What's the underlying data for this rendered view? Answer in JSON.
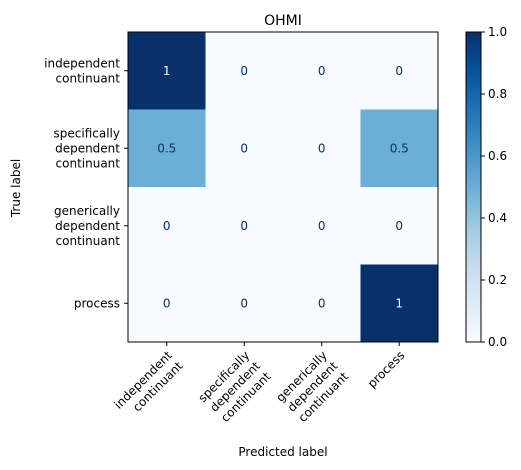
{
  "chart_data": {
    "type": "heatmap",
    "title": "OHMI",
    "xlabel": "Predicted label",
    "ylabel": "True label",
    "row_labels": [
      [
        "independent",
        "continuant"
      ],
      [
        "specifically",
        "dependent",
        "continuant"
      ],
      [
        "generically",
        "dependent",
        "continuant"
      ],
      [
        "process"
      ]
    ],
    "col_labels": [
      [
        "independent",
        "continuant"
      ],
      [
        "specifically",
        "dependent",
        "continuant"
      ],
      [
        "generically",
        "dependent",
        "continuant"
      ],
      [
        "process"
      ]
    ],
    "values": [
      [
        1,
        0,
        0,
        0
      ],
      [
        0.5,
        0,
        0,
        0.5
      ],
      [
        0,
        0,
        0,
        0
      ],
      [
        0,
        0,
        0,
        1
      ]
    ],
    "value_labels": [
      [
        "1",
        "0",
        "0",
        "0"
      ],
      [
        "0.5",
        "0",
        "0",
        "0.5"
      ],
      [
        "0",
        "0",
        "0",
        "0"
      ],
      [
        "0",
        "0",
        "0",
        "1"
      ]
    ],
    "colormap": "Blues",
    "colorbar": {
      "range": [
        0,
        1
      ],
      "ticks": [
        "0.0",
        "0.2",
        "0.4",
        "0.6",
        "0.8",
        "1.0"
      ]
    },
    "colors": {
      "low": "#f7fbff",
      "high": "#08306b",
      "text_dark": "#08306b",
      "text_light": "#ffffff"
    }
  }
}
